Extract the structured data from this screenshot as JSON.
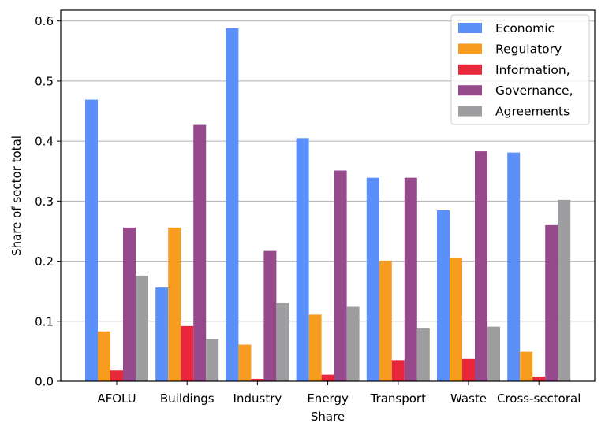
{
  "chart_data": {
    "type": "bar",
    "xlabel": "Share",
    "ylabel": "Share of sector total",
    "ylim": [
      0,
      0.618
    ],
    "yticks": [
      0.0,
      0.1,
      0.2,
      0.3,
      0.4,
      0.5,
      0.6
    ],
    "ytick_labels": [
      "0.0",
      "0.1",
      "0.2",
      "0.3",
      "0.4",
      "0.5",
      "0.6"
    ],
    "grid": "horizontal",
    "legend_position": "top-right",
    "categories": [
      "AFOLU",
      "Buildings",
      "Industry",
      "Energy",
      "Transport",
      "Waste",
      "Cross-sectoral"
    ],
    "series": [
      {
        "name": "Economic",
        "color": "#5b8ff9",
        "values": [
          0.469,
          0.156,
          0.588,
          0.405,
          0.339,
          0.285,
          0.381
        ]
      },
      {
        "name": "Regulatory",
        "color": "#f89c20",
        "values": [
          0.083,
          0.256,
          0.061,
          0.111,
          0.201,
          0.205,
          0.049
        ]
      },
      {
        "name": "Information,",
        "color": "#e8283a",
        "values": [
          0.018,
          0.092,
          0.004,
          0.011,
          0.035,
          0.037,
          0.008
        ]
      },
      {
        "name": "Governance,",
        "color": "#964a8b",
        "values": [
          0.256,
          0.427,
          0.217,
          0.351,
          0.339,
          0.383,
          0.26
        ]
      },
      {
        "name": "Agreements",
        "color": "#9e9ea1",
        "values": [
          0.176,
          0.07,
          0.13,
          0.124,
          0.088,
          0.091,
          0.302
        ]
      }
    ]
  }
}
